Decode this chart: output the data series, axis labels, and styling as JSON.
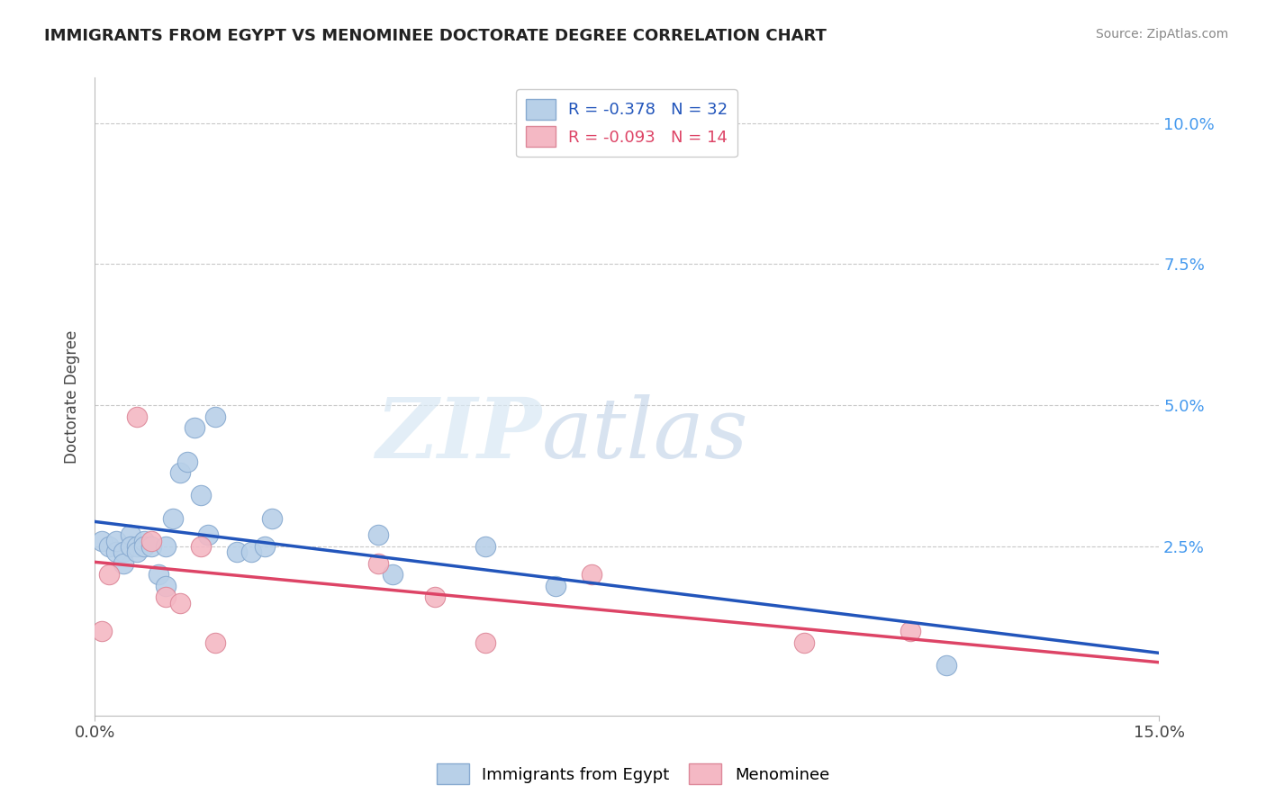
{
  "title": "IMMIGRANTS FROM EGYPT VS MENOMINEE DOCTORATE DEGREE CORRELATION CHART",
  "source": "Source: ZipAtlas.com",
  "ylabel": "Doctorate Degree",
  "xlim": [
    0.0,
    0.15
  ],
  "ylim": [
    -0.005,
    0.108
  ],
  "xticks": [
    0.0,
    0.15
  ],
  "xticklabels": [
    "0.0%",
    "15.0%"
  ],
  "yticks": [
    0.025,
    0.05,
    0.075,
    0.1
  ],
  "yticklabels": [
    "2.5%",
    "5.0%",
    "7.5%",
    "10.0%"
  ],
  "grid_color": "#c8c8c8",
  "background_color": "#ffffff",
  "blue_color": "#b8d0e8",
  "pink_color": "#f4b8c4",
  "blue_line_color": "#2255bb",
  "pink_line_color": "#dd4466",
  "legend_R1": "R = -0.378",
  "legend_N1": "N = 32",
  "legend_R2": "R = -0.093",
  "legend_N2": "N = 14",
  "watermark_zip": "ZIP",
  "watermark_atlas": "atlas",
  "blue_points_x": [
    0.001,
    0.002,
    0.003,
    0.003,
    0.004,
    0.004,
    0.005,
    0.005,
    0.006,
    0.006,
    0.007,
    0.007,
    0.008,
    0.009,
    0.01,
    0.01,
    0.011,
    0.012,
    0.013,
    0.014,
    0.015,
    0.016,
    0.017,
    0.02,
    0.022,
    0.024,
    0.025,
    0.04,
    0.042,
    0.055,
    0.065,
    0.12
  ],
  "blue_points_y": [
    0.026,
    0.025,
    0.024,
    0.026,
    0.024,
    0.022,
    0.027,
    0.025,
    0.025,
    0.024,
    0.026,
    0.025,
    0.025,
    0.02,
    0.025,
    0.018,
    0.03,
    0.038,
    0.04,
    0.046,
    0.034,
    0.027,
    0.048,
    0.024,
    0.024,
    0.025,
    0.03,
    0.027,
    0.02,
    0.025,
    0.018,
    0.004
  ],
  "pink_points_x": [
    0.001,
    0.002,
    0.006,
    0.008,
    0.01,
    0.012,
    0.015,
    0.017,
    0.04,
    0.048,
    0.055,
    0.07,
    0.1,
    0.115
  ],
  "pink_points_y": [
    0.01,
    0.02,
    0.048,
    0.026,
    0.016,
    0.015,
    0.025,
    0.008,
    0.022,
    0.016,
    0.008,
    0.02,
    0.008,
    0.01
  ]
}
